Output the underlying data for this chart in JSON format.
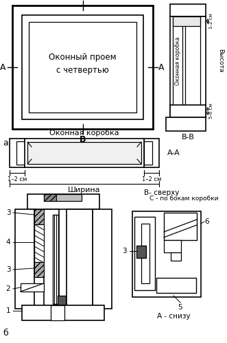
{
  "bg_color": "#ffffff",
  "line_color": "#000000",
  "title_a": "а",
  "title_b": "б",
  "text_center": "Оконный проем\nс четвертью",
  "text_bb": "B-B",
  "text_aa": "A-A",
  "text_okon_korobka": "Оконная коробка",
  "text_vysota": "Высота",
  "text_shirina": "Ширина",
  "text_b_sverhu": "В- сверху",
  "text_c_po_bokam": "С - по бокам коробки",
  "text_a_snizu": "А - снизу",
  "text_1_2_sm": "1–2 см",
  "text_1_2_sm_top": "1-2 см",
  "text_5_6_sm": "5-6 см",
  "label_b": "В",
  "label_a": "А",
  "num1": "1",
  "num2": "2",
  "num3": "3",
  "num4": "4",
  "num5": "5",
  "num6": "6"
}
